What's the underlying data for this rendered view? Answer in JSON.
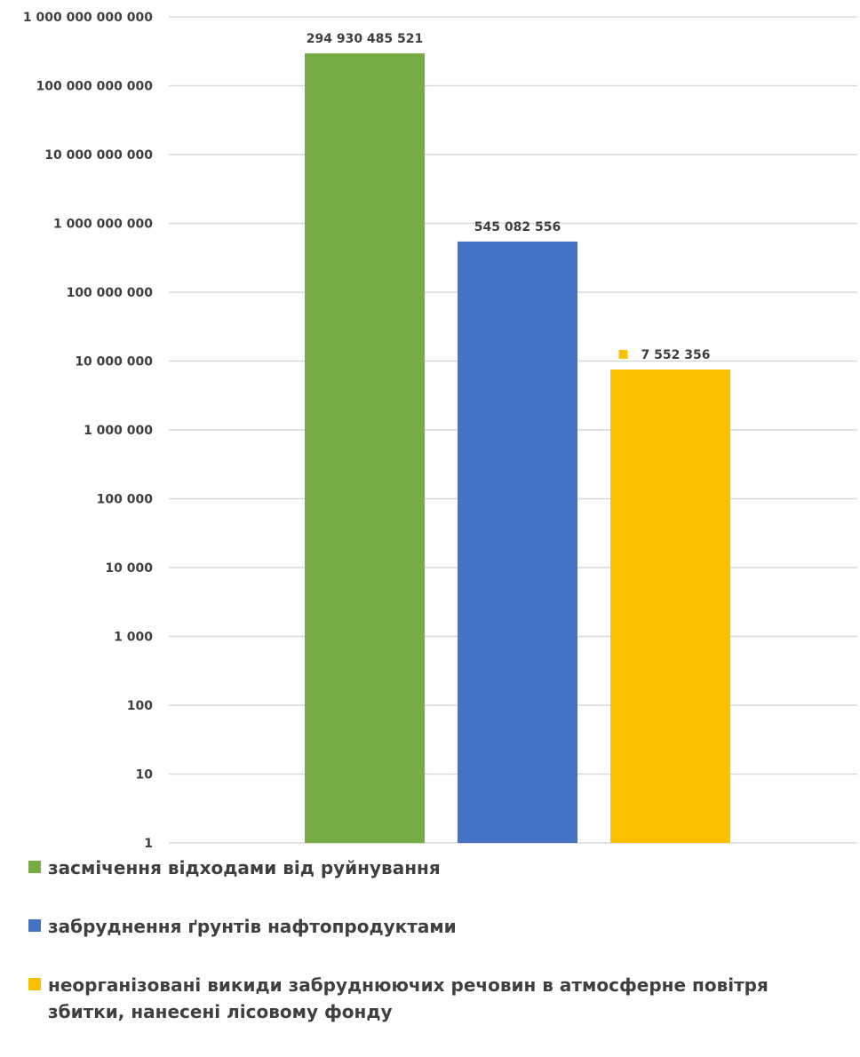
{
  "chart_data": {
    "type": "bar",
    "scale": "log",
    "ylim": [
      1,
      1000000000000
    ],
    "y_ticks": [
      1,
      10,
      100,
      1000,
      10000,
      100000,
      1000000,
      10000000,
      100000000,
      1000000000,
      10000000000,
      100000000000,
      1000000000000
    ],
    "y_tick_labels": [
      "1",
      "10",
      "100",
      "1 000",
      "10 000",
      "100 000",
      "1 000 000",
      "10 000 000",
      "100 000 000",
      "1 000 000 000",
      "10 000 000 000",
      "100 000 000 000",
      "1 000 000 000 000"
    ],
    "grid": true,
    "legend_position": "bottom",
    "series": [
      {
        "name": "засмічення відходами від руйнування",
        "value": 294930485521,
        "label": "294 930 485 521",
        "color": "#77ac44"
      },
      {
        "name": "забруднення ґрунтів нафтопродуктами",
        "value": 545082556,
        "label": "545 082 556",
        "color": "#4472c4"
      },
      {
        "name": "неорганізовані викиди забруднюючих речовин в атмосферне повітря",
        "value": 7552356,
        "label": "7 552 356",
        "color": "#fbc100"
      },
      {
        "name": "збитки, нанесені лісовому фонду",
        "value": null,
        "label": "",
        "color": "#fbc100"
      }
    ]
  }
}
